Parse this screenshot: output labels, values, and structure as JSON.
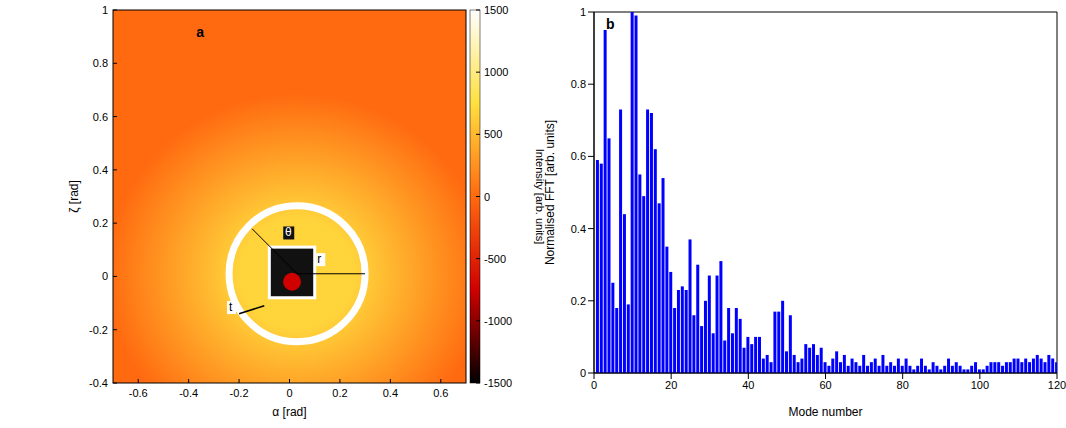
{
  "chart_data": [
    {
      "type": "image",
      "panel": "a",
      "x_label": "α [rad]",
      "y_label": "ζ [rad]",
      "xlim": [
        -0.7,
        0.7
      ],
      "xticks": [
        -0.6,
        -0.4,
        -0.2,
        0,
        0.2,
        0.4,
        0.6
      ],
      "ylim": [
        -0.4,
        1
      ],
      "yticks": [
        -0.4,
        -0.2,
        0,
        0.2,
        0.4,
        0.6,
        0.8,
        1
      ],
      "colorbar": {
        "label": "Intensity [arb. units]",
        "range": [
          -1500,
          1500
        ],
        "ticks": [
          -1500,
          -1000,
          -500,
          0,
          500,
          1000,
          1500
        ],
        "colors": [
          "#000000",
          "#d00000",
          "#ff6a10",
          "#ffe040",
          "#ffffff"
        ]
      },
      "annotations": [
        "θ",
        "r",
        "t"
      ]
    },
    {
      "type": "bar",
      "panel": "b",
      "x_label": "Mode number",
      "y_label": "Normalised FFT [arb. units]",
      "color": "#0000ff",
      "xlim": [
        0,
        120
      ],
      "xticks": [
        0,
        20,
        40,
        60,
        80,
        100,
        120
      ],
      "ylim": [
        0,
        1
      ],
      "yticks": [
        0,
        0.2,
        0.4,
        0.6,
        0.8,
        1
      ],
      "x": [
        1,
        2,
        3,
        4,
        5,
        6,
        7,
        8,
        9,
        10,
        11,
        12,
        13,
        14,
        15,
        16,
        17,
        18,
        19,
        20,
        21,
        22,
        23,
        24,
        25,
        26,
        27,
        28,
        29,
        30,
        31,
        32,
        33,
        34,
        35,
        36,
        37,
        38,
        39,
        40,
        41,
        42,
        43,
        44,
        45,
        46,
        47,
        48,
        49,
        50,
        51,
        52,
        53,
        54,
        55,
        56,
        57,
        58,
        59,
        60,
        61,
        62,
        63,
        64,
        65,
        66,
        67,
        68,
        69,
        70,
        71,
        72,
        73,
        74,
        75,
        76,
        77,
        78,
        79,
        80,
        81,
        82,
        83,
        84,
        85,
        86,
        87,
        88,
        89,
        90,
        91,
        92,
        93,
        94,
        95,
        96,
        97,
        98,
        99,
        100,
        101,
        102,
        103,
        104,
        105,
        106,
        107,
        108,
        109,
        110,
        111,
        112,
        113,
        114,
        115,
        116,
        117,
        118,
        119,
        120
      ],
      "values": [
        0.59,
        0.58,
        0.95,
        0.65,
        0.25,
        0.18,
        0.73,
        0.44,
        0.19,
        1.0,
        0.99,
        0.55,
        0.49,
        0.73,
        0.72,
        0.62,
        0.47,
        0.54,
        0.35,
        0.28,
        0.18,
        0.23,
        0.24,
        0.23,
        0.37,
        0.16,
        0.3,
        0.13,
        0.2,
        0.27,
        0.11,
        0.27,
        0.31,
        0.09,
        0.18,
        0.11,
        0.18,
        0.15,
        0.07,
        0.1,
        0.08,
        0.1,
        0.1,
        0.04,
        0.05,
        0.03,
        0.17,
        0.17,
        0.2,
        0.06,
        0.16,
        0.05,
        0.03,
        0.04,
        0.08,
        0.07,
        0.08,
        0.05,
        0.07,
        0.03,
        0.02,
        0.04,
        0.06,
        0.03,
        0.05,
        0.02,
        0.04,
        0.03,
        0.02,
        0.05,
        0.02,
        0.03,
        0.04,
        0.02,
        0.05,
        0.02,
        0.03,
        0.02,
        0.04,
        0.02,
        0.04,
        0.02,
        0.01,
        0.02,
        0.04,
        0.02,
        0.01,
        0.03,
        0.02,
        0.01,
        0.02,
        0.04,
        0.02,
        0.03,
        0.02,
        0.01,
        0.01,
        0.02,
        0.03,
        0.01,
        0.01,
        0.02,
        0.03,
        0.03,
        0.03,
        0.02,
        0.03,
        0.03,
        0.04,
        0.04,
        0.03,
        0.04,
        0.03,
        0.04,
        0.05,
        0.04,
        0.03,
        0.05,
        0.04,
        0.03
      ]
    }
  ]
}
